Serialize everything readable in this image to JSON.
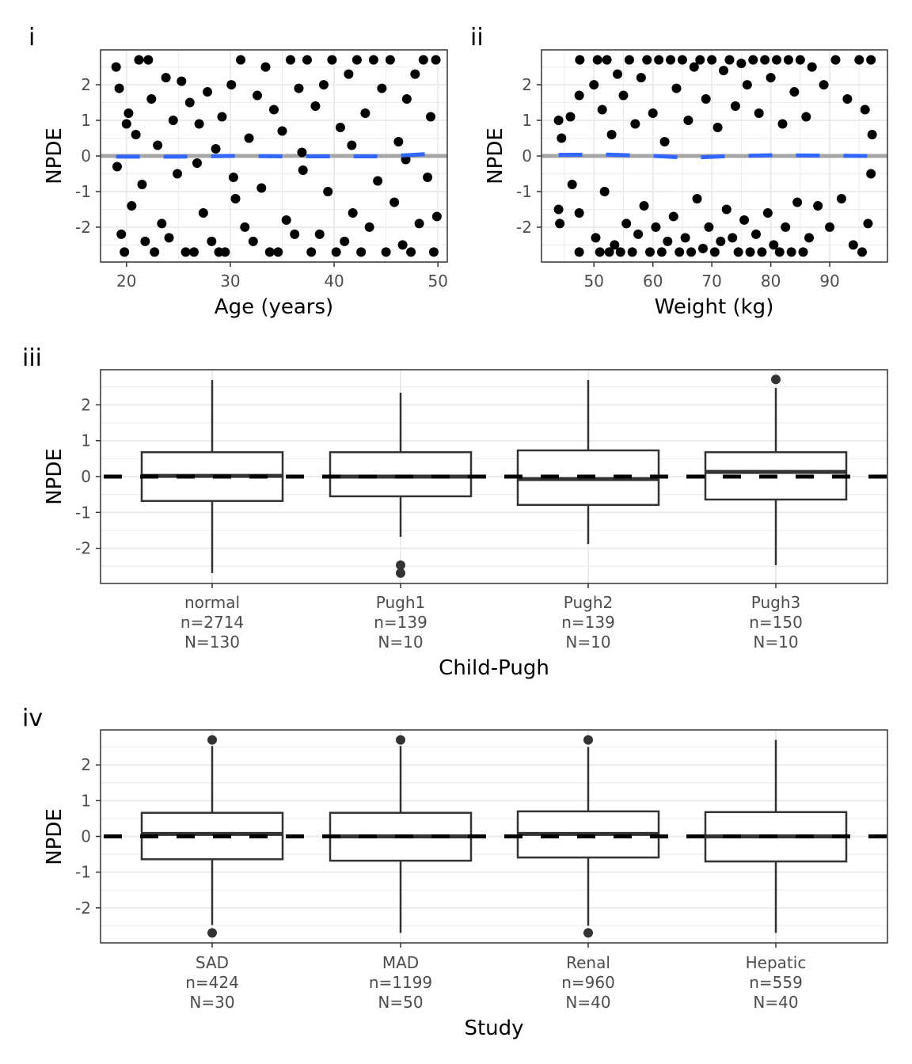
{
  "chart_data": [
    {
      "tag": "i",
      "type": "scatter",
      "xlabel": "Age (years)",
      "ylabel": "NPDE",
      "xlim": [
        17.5,
        50.9
      ],
      "ylim": [
        -2.98,
        2.98
      ],
      "xticks": [
        20,
        30,
        40,
        50
      ],
      "yticks": [
        -2,
        -1,
        0,
        1,
        2
      ],
      "grid": true,
      "reference_line": {
        "y": 0,
        "color": "#a6a6a6"
      },
      "smooth": {
        "color": "#3366ff",
        "style": "dashed",
        "x": [
          19,
          25,
          30,
          35,
          40,
          45,
          50
        ],
        "y": [
          -0.02,
          -0.02,
          0.0,
          -0.01,
          -0.01,
          -0.01,
          0.07
        ]
      },
      "points": [
        [
          19,
          2.5
        ],
        [
          19.3,
          1.9
        ],
        [
          19.5,
          -2.2
        ],
        [
          19.8,
          -2.7
        ],
        [
          20.2,
          1.2
        ],
        [
          20.5,
          -1.4
        ],
        [
          20.9,
          0.6
        ],
        [
          21.2,
          2.7
        ],
        [
          21.5,
          -0.8
        ],
        [
          21.8,
          -2.4
        ],
        [
          22.1,
          2.7
        ],
        [
          22.4,
          1.6
        ],
        [
          22.7,
          -2.7
        ],
        [
          23,
          0.3
        ],
        [
          23.4,
          -1.9
        ],
        [
          23.8,
          2.2
        ],
        [
          24.1,
          -2.3
        ],
        [
          24.5,
          1.0
        ],
        [
          24.9,
          -0.5
        ],
        [
          25.3,
          2.1
        ],
        [
          25.7,
          -2.7
        ],
        [
          26.1,
          1.5
        ],
        [
          26.5,
          -2.7
        ],
        [
          27,
          0.9
        ],
        [
          27.4,
          -1.6
        ],
        [
          27.8,
          1.8
        ],
        [
          28.2,
          -2.4
        ],
        [
          28.6,
          0.2
        ],
        [
          28.9,
          -2.7
        ],
        [
          29.2,
          1.1
        ],
        [
          29.5,
          -2.7
        ],
        [
          30.1,
          2.0
        ],
        [
          30.5,
          -1.2
        ],
        [
          31,
          2.7
        ],
        [
          31.4,
          -2.0
        ],
        [
          31.8,
          0.5
        ],
        [
          32.2,
          -2.4
        ],
        [
          32.6,
          1.7
        ],
        [
          33,
          -0.9
        ],
        [
          33.4,
          2.5
        ],
        [
          33.8,
          -2.7
        ],
        [
          34.2,
          1.3
        ],
        [
          34.6,
          -2.7
        ],
        [
          35,
          0.7
        ],
        [
          35.4,
          -1.8
        ],
        [
          35.8,
          2.7
        ],
        [
          36.2,
          -2.2
        ],
        [
          36.6,
          1.9
        ],
        [
          37,
          -0.4
        ],
        [
          37.4,
          2.7
        ],
        [
          37.8,
          -2.7
        ],
        [
          38.2,
          1.4
        ],
        [
          38.6,
          -2.2
        ],
        [
          39,
          2.0
        ],
        [
          39.4,
          -1.0
        ],
        [
          39.8,
          2.7
        ],
        [
          40.2,
          -2.7
        ],
        [
          40.6,
          0.8
        ],
        [
          41,
          -2.4
        ],
        [
          41.4,
          2.3
        ],
        [
          41.8,
          -1.6
        ],
        [
          42.2,
          2.7
        ],
        [
          42.6,
          -2.7
        ],
        [
          43,
          1.2
        ],
        [
          43.4,
          -2.0
        ],
        [
          43.8,
          2.7
        ],
        [
          44.2,
          -0.7
        ],
        [
          44.6,
          1.9
        ],
        [
          45,
          -2.7
        ],
        [
          45.4,
          2.7
        ],
        [
          45.8,
          -1.3
        ],
        [
          46.2,
          0.4
        ],
        [
          46.6,
          -2.5
        ],
        [
          47,
          1.6
        ],
        [
          47.4,
          -2.7
        ],
        [
          47.8,
          2.3
        ],
        [
          48.2,
          -1.9
        ],
        [
          48.6,
          2.7
        ],
        [
          49,
          -0.6
        ],
        [
          49.3,
          1.1
        ],
        [
          49.6,
          -2.7
        ],
        [
          49.8,
          2.7
        ],
        [
          49.9,
          -1.7
        ],
        [
          19.1,
          -0.3
        ],
        [
          20,
          0.9
        ],
        [
          26.8,
          -0.2
        ],
        [
          30.3,
          -0.6
        ],
        [
          36.9,
          0.1
        ],
        [
          41.7,
          0.3
        ],
        [
          46.9,
          -0.1
        ]
      ]
    },
    {
      "tag": "ii",
      "type": "scatter",
      "xlabel": "Weight (kg)",
      "ylabel": "NPDE",
      "xlim": [
        41.1,
        99.8
      ],
      "ylim": [
        -2.98,
        2.98
      ],
      "xticks": [
        50,
        60,
        70,
        80,
        90
      ],
      "yticks": [
        -2,
        -1,
        0,
        1,
        2
      ],
      "grid": true,
      "reference_line": {
        "y": 0,
        "color": "#a6a6a6"
      },
      "smooth": {
        "color": "#3366ff",
        "style": "dashed",
        "x": [
          44,
          52,
          60,
          66,
          72,
          80,
          88,
          97
        ],
        "y": [
          0.03,
          0.04,
          0.0,
          -0.05,
          -0.01,
          0.02,
          0.01,
          0.0
        ]
      },
      "points": [
        [
          44,
          1.0
        ],
        [
          44,
          -1.5
        ],
        [
          44.2,
          -1.9
        ],
        [
          44.5,
          0.5
        ],
        [
          46,
          1.1
        ],
        [
          46.3,
          -0.8
        ],
        [
          47.5,
          1.7
        ],
        [
          47.5,
          -1.6
        ],
        [
          47.5,
          -2.7
        ],
        [
          47.6,
          2.7
        ],
        [
          50,
          2.0
        ],
        [
          50.3,
          -2.3
        ],
        [
          50.6,
          2.7
        ],
        [
          51,
          -2.7
        ],
        [
          51.4,
          1.3
        ],
        [
          51.8,
          -1.0
        ],
        [
          52.2,
          2.7
        ],
        [
          52.6,
          -2.7
        ],
        [
          53,
          0.6
        ],
        [
          53.5,
          -2.5
        ],
        [
          54,
          2.3
        ],
        [
          54.5,
          -2.7
        ],
        [
          55,
          1.7
        ],
        [
          55.5,
          -1.9
        ],
        [
          56,
          2.7
        ],
        [
          56.5,
          -2.7
        ],
        [
          57,
          0.9
        ],
        [
          57.5,
          -2.2
        ],
        [
          58,
          2.2
        ],
        [
          58.5,
          -1.4
        ],
        [
          59,
          2.7
        ],
        [
          59.5,
          -2.7
        ],
        [
          60,
          1.2
        ],
        [
          60.5,
          -2.0
        ],
        [
          61,
          2.7
        ],
        [
          61.5,
          -2.7
        ],
        [
          62,
          0.4
        ],
        [
          62.5,
          -2.4
        ],
        [
          63,
          2.7
        ],
        [
          63.5,
          -1.7
        ],
        [
          64,
          1.9
        ],
        [
          64.5,
          -2.7
        ],
        [
          65,
          2.7
        ],
        [
          65.5,
          -2.3
        ],
        [
          66,
          1.0
        ],
        [
          66.5,
          -2.7
        ],
        [
          67,
          2.5
        ],
        [
          67.5,
          -1.2
        ],
        [
          68,
          2.7
        ],
        [
          68.5,
          -2.6
        ],
        [
          69,
          1.6
        ],
        [
          69.5,
          -2.0
        ],
        [
          70,
          2.7
        ],
        [
          70.5,
          -2.7
        ],
        [
          71,
          0.8
        ],
        [
          71.5,
          -2.4
        ],
        [
          72,
          2.4
        ],
        [
          72.5,
          -1.5
        ],
        [
          73,
          2.7
        ],
        [
          73.5,
          -2.3
        ],
        [
          74,
          1.4
        ],
        [
          74.5,
          -2.7
        ],
        [
          75,
          2.6
        ],
        [
          75.5,
          -1.8
        ],
        [
          76,
          2.0
        ],
        [
          76.5,
          -2.7
        ],
        [
          77,
          2.7
        ],
        [
          77.5,
          -2.2
        ],
        [
          78,
          1.2
        ],
        [
          78.5,
          -2.7
        ],
        [
          79,
          2.7
        ],
        [
          79.5,
          -1.6
        ],
        [
          80,
          2.2
        ],
        [
          80.5,
          -2.5
        ],
        [
          81,
          2.7
        ],
        [
          81.5,
          -2.7
        ],
        [
          82,
          0.9
        ],
        [
          82.5,
          -2.0
        ],
        [
          83,
          2.7
        ],
        [
          83.5,
          -2.7
        ],
        [
          84,
          1.8
        ],
        [
          84.5,
          -1.3
        ],
        [
          85,
          2.7
        ],
        [
          85.5,
          -2.7
        ],
        [
          86,
          1.1
        ],
        [
          86.5,
          -2.3
        ],
        [
          87,
          2.5
        ],
        [
          88,
          -1.4
        ],
        [
          89,
          2.0
        ],
        [
          90,
          -2.0
        ],
        [
          91,
          2.7
        ],
        [
          92,
          -1.2
        ],
        [
          93,
          1.6
        ],
        [
          94,
          -2.5
        ],
        [
          95,
          2.7
        ],
        [
          95.5,
          -2.7
        ],
        [
          96,
          1.3
        ],
        [
          96.5,
          -1.9
        ],
        [
          97,
          2.7
        ],
        [
          97,
          -0.5
        ],
        [
          97.2,
          0.6
        ]
      ]
    },
    {
      "tag": "iii",
      "type": "box",
      "xlabel": "Child-Pugh",
      "ylabel": "NPDE",
      "ylim": [
        -2.98,
        2.98
      ],
      "yticks": [
        -2,
        -1,
        0,
        1,
        2
      ],
      "grid": true,
      "reference_line": {
        "y": 0,
        "style": "dashed",
        "color": "#000000"
      },
      "categories": [
        {
          "label": [
            "normal",
            "n=2714",
            "N=130"
          ],
          "q1": -0.68,
          "median": 0.02,
          "q3": 0.68,
          "whisker_low": -2.69,
          "whisker_high": 2.69,
          "outliers": []
        },
        {
          "label": [
            "Pugh1",
            "n=139",
            "N=10"
          ],
          "q1": -0.55,
          "median": 0.0,
          "q3": 0.68,
          "whisker_low": -1.68,
          "whisker_high": 2.34,
          "outliers": [
            -2.47,
            -2.69
          ]
        },
        {
          "label": [
            "Pugh2",
            "n=139",
            "N=10"
          ],
          "q1": -0.79,
          "median": -0.07,
          "q3": 0.73,
          "whisker_low": -1.88,
          "whisker_high": 2.69,
          "outliers": []
        },
        {
          "label": [
            "Pugh3",
            "n=150",
            "N=10"
          ],
          "q1": -0.64,
          "median": 0.13,
          "q3": 0.68,
          "whisker_low": -2.47,
          "whisker_high": 2.47,
          "outliers": [
            2.71
          ]
        }
      ]
    },
    {
      "tag": "iv",
      "type": "box",
      "xlabel": "Study",
      "ylabel": "NPDE",
      "ylim": [
        -2.98,
        2.98
      ],
      "yticks": [
        -2,
        -1,
        0,
        1,
        2
      ],
      "grid": true,
      "reference_line": {
        "y": 0,
        "style": "dashed",
        "color": "#000000"
      },
      "categories": [
        {
          "label": [
            "SAD",
            "n=424",
            "N=30"
          ],
          "q1": -0.64,
          "median": 0.07,
          "q3": 0.66,
          "whisker_low": -2.48,
          "whisker_high": 2.53,
          "outliers": [
            2.7,
            -2.7
          ]
        },
        {
          "label": [
            "MAD",
            "n=1199",
            "N=50"
          ],
          "q1": -0.68,
          "median": 0.0,
          "q3": 0.66,
          "whisker_low": -2.7,
          "whisker_high": 2.53,
          "outliers": [
            2.7
          ]
        },
        {
          "label": [
            "Renal",
            "n=960",
            "N=40"
          ],
          "q1": -0.59,
          "median": 0.07,
          "q3": 0.7,
          "whisker_low": -2.5,
          "whisker_high": 2.5,
          "outliers": [
            2.7,
            -2.7
          ]
        },
        {
          "label": [
            "Hepatic",
            "n=559",
            "N=40"
          ],
          "q1": -0.7,
          "median": 0.0,
          "q3": 0.68,
          "whisker_low": -2.7,
          "whisker_high": 2.7,
          "outliers": []
        }
      ]
    }
  ]
}
